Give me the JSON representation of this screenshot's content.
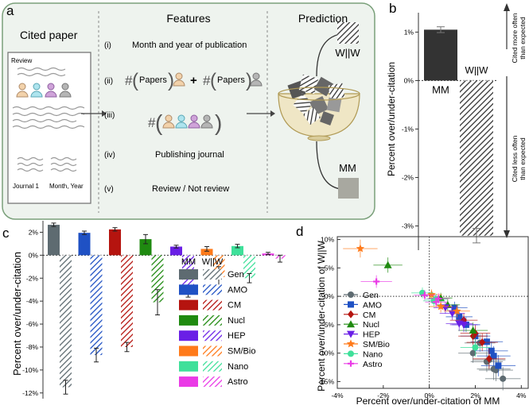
{
  "panel_labels": {
    "a": "a",
    "b": "b",
    "c": "c",
    "d": "d"
  },
  "panel_a": {
    "col_cited": "Cited paper",
    "col_features": "Features",
    "col_prediction": "Prediction",
    "paper_header": "Review",
    "journal_label": "Journal 1",
    "date_label": "Month, Year",
    "features": [
      {
        "num": "(i)",
        "text": "Month and year of publication"
      },
      {
        "num": "(ii)",
        "text": ""
      },
      {
        "num": "(iii)",
        "text": ""
      },
      {
        "num": "(iv)",
        "text": "Publishing journal"
      },
      {
        "num": "(v)",
        "text": "Review / Not review"
      }
    ],
    "hash": "#",
    "papers": "Papers",
    "plus": "+",
    "pred_top": "W||W",
    "pred_bottom": "MM"
  },
  "colors": {
    "Gen": "#5e6b71",
    "AMO": "#1f51c4",
    "CM": "#b5140f",
    "Nucl": "#1f8a10",
    "HEP": "#6a1fe6",
    "SM/Bio": "#ff7a1a",
    "Nano": "#3fe09a",
    "Astro": "#ea3ae6",
    "mm_dark": "#333333",
    "bg_panel_a": "#eef3ee",
    "border_a": "#7aa07a"
  },
  "chart_data": [
    {
      "id": "b",
      "type": "bar",
      "categories": [
        "MM",
        "W||W"
      ],
      "values": [
        1.05,
        -3.2
      ],
      "errors": [
        0.06,
        0.15
      ],
      "ylabel": "Percent over/under-citation",
      "ylim": [
        -3.5,
        1.4
      ],
      "yticks": [
        1,
        0,
        -1,
        -2,
        -3
      ],
      "ytick_labels": [
        "1%",
        "0%",
        "-1%",
        "-2%",
        "-3%"
      ],
      "annotation_up": "Cited more often\nthan expected",
      "annotation_down": "Cited less often\nthan expected"
    },
    {
      "id": "c",
      "type": "bar",
      "categories": [
        "Gen",
        "AMO",
        "CM",
        "Nucl",
        "HEP",
        "SM/Bio",
        "Nano",
        "Astro"
      ],
      "series": [
        {
          "name": "MM",
          "values": [
            2.65,
            1.95,
            2.25,
            1.4,
            0.75,
            0.55,
            0.8,
            0.15
          ],
          "errors": [
            0.15,
            0.15,
            0.15,
            0.4,
            0.12,
            0.2,
            0.15,
            0.1
          ]
        },
        {
          "name": "W||W",
          "values": [
            -11.5,
            -8.7,
            -8.0,
            -4.1,
            -3.15,
            -1.9,
            -2.0,
            -0.3
          ],
          "errors": [
            0.6,
            0.6,
            0.4,
            1.1,
            0.5,
            0.9,
            0.4,
            0.3
          ]
        }
      ],
      "ylabel": "Percent over/under-citation",
      "ylim": [
        -12.5,
        3.0
      ],
      "yticks": [
        2,
        0,
        -2,
        -4,
        -6,
        -8,
        -10,
        -12
      ],
      "ytick_labels": [
        "2%",
        "0%",
        "-2%",
        "-4%",
        "-6%",
        "-8%",
        "-10%",
        "-12%"
      ],
      "legend_header_mm": "MM",
      "legend_header_ww": "W||W"
    },
    {
      "id": "d",
      "type": "scatter",
      "xlabel": "Percent over/under-citation of MM",
      "ylabel": "Percent over/under-citation of W||W",
      "xlim": [
        -4,
        4.3
      ],
      "ylim": [
        -16.2,
        10.5
      ],
      "xticks": [
        -4,
        -2,
        0,
        2,
        4
      ],
      "xtick_labels": [
        "-4%",
        "-2%",
        "0%",
        "2%",
        "4%"
      ],
      "yticks": [
        10,
        5,
        0,
        -5,
        -10,
        -15
      ],
      "ytick_labels": [
        "10%",
        "5%",
        "0%",
        "-5%",
        "-10%",
        "-15%"
      ],
      "series": [
        {
          "name": "Gen",
          "marker": "circle",
          "points": [
            [
              2.2,
              -8.2
            ],
            [
              2.5,
              -11.5
            ],
            [
              2.8,
              -12.8
            ],
            [
              3.2,
              -14.5
            ],
            [
              2.6,
              -11.2
            ],
            [
              2.9,
              -13.0
            ],
            [
              1.9,
              -10.0
            ]
          ]
        },
        {
          "name": "AMO",
          "marker": "square",
          "points": [
            [
              1.3,
              -3.6
            ],
            [
              1.6,
              -5.0
            ],
            [
              2.0,
              -7.0
            ],
            [
              2.5,
              -8.0
            ],
            [
              2.7,
              -9.6
            ],
            [
              3.0,
              -12.2
            ],
            [
              2.8,
              -10.5
            ],
            [
              1.1,
              -2.0
            ]
          ]
        },
        {
          "name": "CM",
          "marker": "diamond",
          "points": [
            [
              1.5,
              -4.2
            ],
            [
              2.0,
              -6.5
            ],
            [
              2.3,
              -8.1
            ],
            [
              2.6,
              -11.0
            ],
            [
              1.9,
              -7.0
            ]
          ]
        },
        {
          "name": "Nucl",
          "marker": "triangle",
          "points": [
            [
              -1.8,
              5.5
            ],
            [
              0.8,
              -1.5
            ],
            [
              1.9,
              -6.0
            ],
            [
              0.5,
              -0.3
            ]
          ]
        },
        {
          "name": "HEP",
          "marker": "triangle-down",
          "points": [
            [
              0.7,
              -2.0
            ],
            [
              1.0,
              -3.0
            ],
            [
              1.5,
              -5.0
            ],
            [
              1.3,
              -4.8
            ]
          ]
        },
        {
          "name": "SM/Bio",
          "marker": "star",
          "points": [
            [
              -3.0,
              8.4
            ],
            [
              0.1,
              0.3
            ],
            [
              0.5,
              -1.8
            ],
            [
              1.2,
              -2.6
            ]
          ]
        },
        {
          "name": "Nano",
          "marker": "circle",
          "points": [
            [
              -0.3,
              0.6
            ],
            [
              0.3,
              -0.5
            ],
            [
              2.0,
              -9.0
            ],
            [
              0.2,
              -0.8
            ]
          ]
        },
        {
          "name": "Astro",
          "marker": "plus",
          "points": [
            [
              -2.3,
              2.6
            ],
            [
              -0.2,
              0.2
            ],
            [
              0.3,
              -1.0
            ],
            [
              0.4,
              -0.4
            ]
          ]
        }
      ]
    }
  ]
}
